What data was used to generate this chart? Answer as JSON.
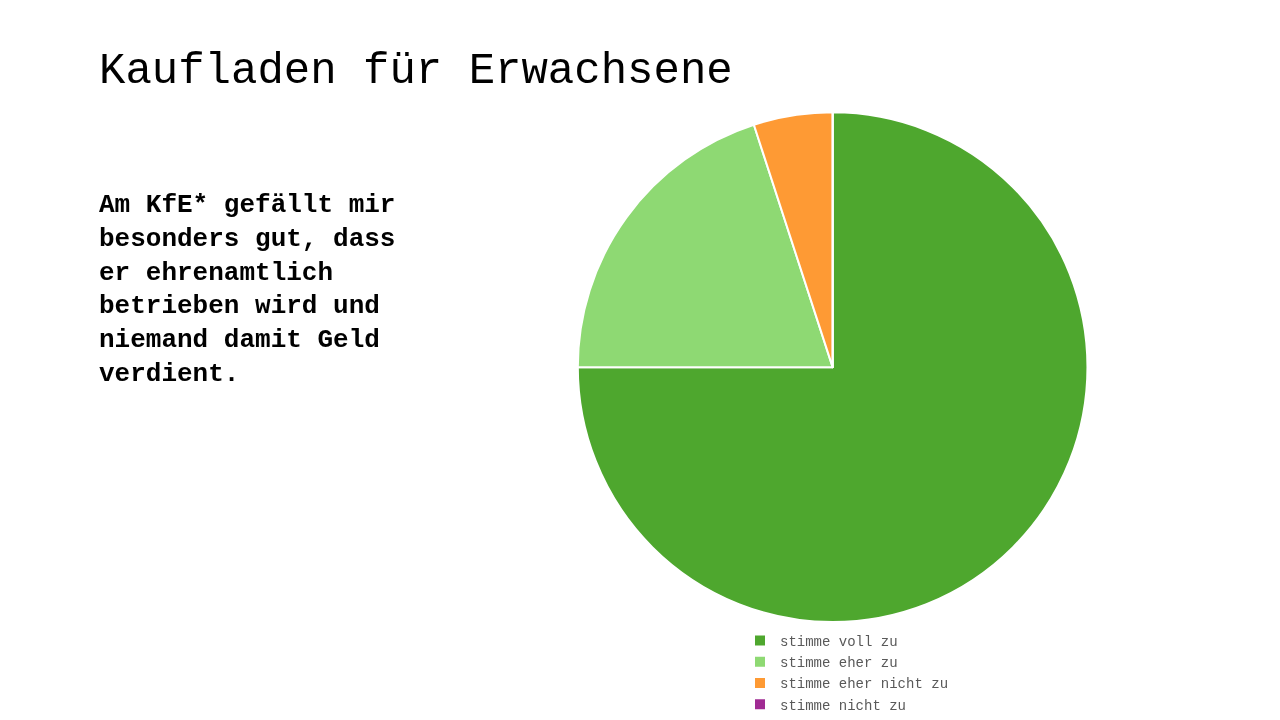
{
  "chart_data": {
    "type": "pie",
    "title": "Kaufladen für Erwachsene",
    "subtitle": "Am KfE* gefällt mir besonders gut, dass er ehrenamtlich betrieben wird und niemand damit Geld verdient.",
    "categories": [
      "stimme voll zu",
      "stimme eher zu",
      "stimme eher nicht zu",
      "stimme nicht zu"
    ],
    "values": [
      75,
      20,
      5,
      0
    ],
    "colors": [
      "#4ea72e",
      "#8ed973",
      "#fe9a34",
      "#a02b93"
    ],
    "legend": "bottom"
  }
}
